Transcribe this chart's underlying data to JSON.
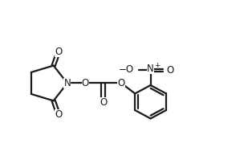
{
  "bg_color": "#ffffff",
  "line_color": "#1a1a1a",
  "line_width": 1.6,
  "font_size": 8.5,
  "xlim": [
    0,
    10
  ],
  "ylim": [
    0,
    7
  ]
}
